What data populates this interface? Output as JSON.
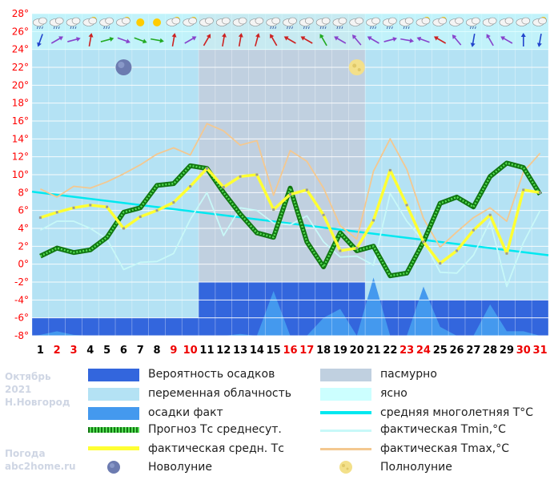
{
  "caption": {
    "month": "Октябрь",
    "year": "2021",
    "city": "Н.Новгород",
    "brand_line1": "Погода",
    "brand_line2": "abc2home.ru"
  },
  "legend": {
    "precip_prob": "Вероятность осадков",
    "overcast": "пасмурно",
    "partly": "переменная облачность",
    "clear": "ясно",
    "precip_fact": "осадки факт",
    "climate": "средняя многолетняя T°C",
    "forecast": "Прогноз Тс среднесут.",
    "tmin": "фактическая Tmin,°C",
    "tavg": "фактическая средн. Тс",
    "tmax": "фактическая Tmax,°C",
    "new_moon": "Новолуние",
    "full_moon": "Полнолуние"
  },
  "colors": {
    "overcast": "#c0d0e0",
    "partly": "#b4e2f4",
    "clear": "#ccffff",
    "precip_prob": "#3366dd",
    "precip_fact": "#4499ee",
    "climate": "#00e8f0",
    "forecast_dark": "#117711",
    "forecast_light": "#55dd55",
    "tmin": "#c8f8f8",
    "tavg": "#ffff33",
    "tmax": "#f4c890",
    "weekend": "#ee0000",
    "weekday": "#000000",
    "axis_label": "#ff0000",
    "grid": "#ffffff"
  },
  "chart_data": {
    "type": "line",
    "x": [
      1,
      2,
      3,
      4,
      5,
      6,
      7,
      8,
      9,
      10,
      11,
      12,
      13,
      14,
      15,
      16,
      17,
      18,
      19,
      20,
      21,
      22,
      23,
      24,
      25,
      26,
      27,
      28,
      29,
      30,
      31
    ],
    "xlabels": [
      "1",
      "2",
      "3",
      "4",
      "5",
      "6",
      "7",
      "8",
      "9",
      "10",
      "11",
      "12",
      "13",
      "14",
      "15",
      "16",
      "17",
      "18",
      "19",
      "20",
      "21",
      "22",
      "23",
      "24",
      "25",
      "26",
      "27",
      "28",
      "29",
      "30",
      "31"
    ],
    "weekend_days": [
      2,
      3,
      9,
      10,
      16,
      17,
      23,
      24,
      30,
      31
    ],
    "ylim": [
      -8,
      28
    ],
    "yticks": [
      "-8",
      "-6",
      "-4",
      "-2",
      "0",
      "2",
      "4",
      "6",
      "8",
      "10",
      "12",
      "14",
      "16",
      "18",
      "20",
      "22",
      "24",
      "26",
      "28"
    ],
    "cloud_bands": [
      {
        "from_day": 1,
        "to_day": 10,
        "state": "partly"
      },
      {
        "from_day": 11,
        "to_day": 20,
        "state": "overcast"
      },
      {
        "from_day": 21,
        "to_day": 31,
        "state": "partly"
      }
    ],
    "precip_prob_level": [
      -6,
      -6,
      -6,
      -6,
      -6,
      -6,
      -6,
      -6,
      -6,
      -6,
      -2,
      -2,
      -2,
      -2,
      -2,
      -2,
      -2,
      -2,
      -2,
      -2,
      -4,
      -4,
      -4,
      -4,
      -4,
      -4,
      -4,
      -4,
      -4,
      -4,
      -4
    ],
    "precip_fact": [
      -7.9,
      -7.5,
      -7.9,
      -8,
      -8,
      -8,
      -8,
      -8,
      -8,
      -8,
      -8,
      -8,
      -7.8,
      -8,
      -3,
      -8,
      -8,
      -6,
      -5,
      -8,
      -1.5,
      -8,
      -8,
      -2.5,
      -7,
      -8,
      -8,
      -4.5,
      -7.5,
      -7.5,
      -8
    ],
    "series": [
      {
        "name": "средняя многолетняя T°C",
        "key": "climate",
        "values": [
          8.1,
          7.9,
          7.7,
          7.5,
          7.3,
          7.1,
          6.9,
          6.7,
          6.5,
          6.3,
          6.1,
          5.9,
          5.7,
          5.5,
          5.3,
          5.1,
          4.9,
          4.7,
          4.5,
          4.3,
          4.1,
          3.8,
          3.5,
          3.2,
          2.9,
          2.6,
          2.3,
          2.0,
          1.6,
          1.2,
          1.0
        ]
      },
      {
        "name": "Прогноз Тс среднесут.",
        "key": "forecast",
        "values": [
          0.9,
          1.8,
          1.3,
          1.6,
          3.0,
          5.8,
          6.3,
          8.8,
          9.0,
          11.0,
          10.7,
          8.0,
          5.6,
          3.5,
          3.0,
          8.5,
          2.5,
          -0.3,
          3.5,
          1.5,
          2.0,
          -1.3,
          -1.0,
          2.5,
          6.8,
          7.5,
          6.4,
          9.8,
          11.3,
          10.8,
          7.8
        ]
      },
      {
        "name": "фактическая Tmin,°C",
        "key": "tmin",
        "values": [
          3.8,
          4.8,
          4.8,
          4.0,
          2.8,
          -0.6,
          0.2,
          0.3,
          1.2,
          5.0,
          8.0,
          3.2,
          6.3,
          6.0,
          4.6,
          4.4,
          5.4,
          2.5,
          0.8,
          0.9,
          -0.1,
          7.9,
          4.8,
          2.6,
          -0.9,
          -1.0,
          1.0,
          4.8,
          -2.5,
          2.4,
          6.0
        ]
      },
      {
        "name": "фактическая средн. Тс",
        "key": "tavg",
        "values": [
          5.2,
          5.8,
          6.3,
          6.6,
          6.4,
          4.0,
          5.3,
          6.0,
          6.9,
          8.7,
          10.7,
          8.6,
          9.8,
          10.0,
          6.1,
          7.8,
          8.3,
          5.5,
          1.5,
          1.8,
          4.9,
          10.5,
          6.6,
          2.5,
          0.1,
          1.5,
          3.8,
          5.5,
          1.2,
          8.3,
          8.0
        ]
      },
      {
        "name": "фактическая Tmax,°C",
        "key": "tmax",
        "values": [
          8.4,
          7.5,
          8.7,
          8.5,
          9.2,
          10.1,
          11.1,
          12.3,
          13.0,
          12.2,
          15.7,
          14.9,
          13.3,
          13.8,
          7.7,
          12.7,
          11.5,
          8.5,
          4.3,
          2.8,
          10.4,
          14.0,
          10.6,
          5.1,
          1.9,
          3.6,
          5.2,
          6.3,
          4.8,
          10.3,
          12.4
        ]
      }
    ],
    "weather_row": {
      "sky": [
        "cloud-rain",
        "cloud-rain",
        "cloud-rain",
        "cloud-sun",
        "cloud-rain",
        "cloud-sun",
        "sun",
        "sun",
        "cloud-sun",
        "cloud-sun",
        "cloud",
        "cloud",
        "cloud",
        "cloud",
        "cloud-rain",
        "cloud-rain",
        "cloud-rain",
        "cloud-rain",
        "cloud-rain",
        "cloud",
        "cloud-rain",
        "cloud-rain",
        "cloud-rain",
        "cloud-sun",
        "cloud-sun",
        "cloud",
        "cloud-rain",
        "cloud",
        "cloud",
        "cloud",
        "cloud-sun"
      ],
      "wind_dir": [
        200,
        60,
        75,
        10,
        75,
        110,
        110,
        100,
        10,
        60,
        30,
        10,
        10,
        15,
        330,
        300,
        300,
        330,
        300,
        320,
        300,
        75,
        100,
        290,
        300,
        320,
        190,
        330,
        300,
        0,
        190
      ],
      "wind_color": [
        "#2244cc",
        "#8844cc",
        "#8844cc",
        "#cc2222",
        "#22aa22",
        "#8844cc",
        "#22aa22",
        "#22aa22",
        "#cc2222",
        "#8844cc",
        "#cc2222",
        "#cc2222",
        "#cc2222",
        "#cc2222",
        "#cc2222",
        "#cc2222",
        "#cc2222",
        "#22aa22",
        "#8844cc",
        "#8844cc",
        "#8844cc",
        "#8844cc",
        "#8844cc",
        "#8844cc",
        "#cc2222",
        "#8844cc",
        "#2244cc",
        "#8844cc",
        "#8844cc",
        "#2244cc",
        "#2244cc"
      ]
    },
    "moon_phases": [
      {
        "day": 6,
        "phase": "new",
        "value": 22
      },
      {
        "day": 20,
        "phase": "full",
        "value": 22
      }
    ]
  }
}
